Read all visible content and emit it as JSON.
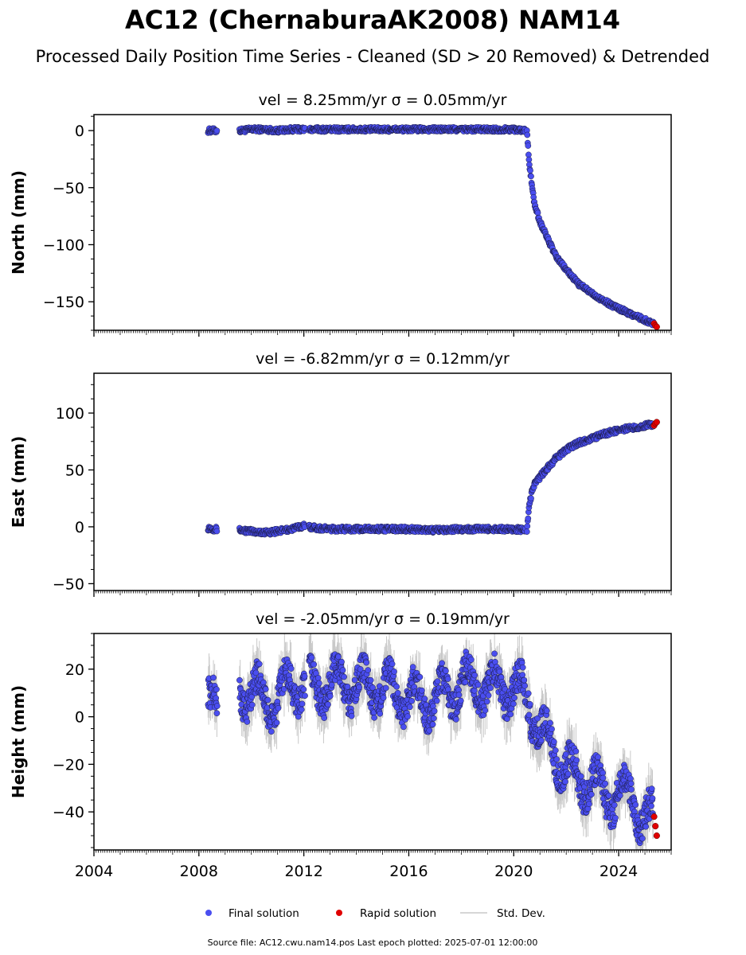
{
  "title": "AC12 (ChernaburaAK2008) NAM14",
  "subtitle": "Processed Daily Position Time Series - Cleaned (SD > 20 Removed) & Detrended",
  "footer": "Source file: AC12.cwu.nam14.pos  Last epoch plotted: 2025-07-01 12:00:00",
  "colors": {
    "final": "#4a4ef0",
    "rapid": "#e00000",
    "stddev": "#c8c8c8",
    "edge": "#1a1a40"
  },
  "legend": {
    "final": "Final solution",
    "rapid": "Rapid solution",
    "stddev": "Std. Dev."
  },
  "chart_data": [
    {
      "type": "scatter",
      "panel": "north",
      "title": "vel = 8.25mm/yr   σ = 0.05mm/yr",
      "ylabel": "North (mm)",
      "xlim": [
        2004.0,
        2026.0
      ],
      "ylim": [
        -175,
        14
      ],
      "yticks": [
        0,
        -50,
        -100,
        -150
      ],
      "ytick_labels": [
        "0",
        "−50",
        "−100",
        "−150"
      ],
      "grid": false,
      "series": [
        {
          "name": "Final solution",
          "x": [
            2008.4,
            2008.6,
            2009.6,
            2010.0,
            2010.5,
            2011.0,
            2011.5,
            2012.0,
            2012.5,
            2013.0,
            2014.0,
            2015.0,
            2016.0,
            2017.0,
            2018.0,
            2019.0,
            2020.0,
            2020.5,
            2020.6,
            2020.7,
            2020.8,
            2021.0,
            2021.3,
            2021.6,
            2022.0,
            2022.5,
            2023.0,
            2023.5,
            2024.0,
            2024.5,
            2025.0,
            2025.3
          ],
          "y": [
            0,
            0,
            0,
            1,
            1,
            0,
            1,
            1,
            1,
            1,
            1,
            1,
            1,
            1,
            1,
            1,
            1,
            0,
            -30,
            -50,
            -65,
            -80,
            -95,
            -110,
            -122,
            -135,
            -143,
            -150,
            -156,
            -161,
            -166,
            -169
          ]
        },
        {
          "name": "Rapid solution",
          "x": [
            2025.35,
            2025.4,
            2025.45
          ],
          "y": [
            -169,
            -171,
            -172
          ]
        }
      ]
    },
    {
      "type": "scatter",
      "panel": "east",
      "title": "vel = -6.82mm/yr   σ = 0.12mm/yr",
      "ylabel": "East (mm)",
      "xlim": [
        2004.0,
        2026.0
      ],
      "ylim": [
        -56,
        135
      ],
      "yticks": [
        100,
        50,
        0,
        -50
      ],
      "ytick_labels": [
        "100",
        "50",
        "0",
        "−50"
      ],
      "grid": false,
      "series": [
        {
          "name": "Final solution",
          "x": [
            2008.4,
            2008.6,
            2009.6,
            2010.0,
            2010.5,
            2011.0,
            2011.5,
            2012.0,
            2012.5,
            2013.0,
            2014.0,
            2015.0,
            2016.0,
            2017.0,
            2018.0,
            2019.0,
            2020.0,
            2020.5,
            2020.6,
            2020.7,
            2020.8,
            2021.0,
            2021.3,
            2021.6,
            2022.0,
            2022.5,
            2023.0,
            2023.5,
            2024.0,
            2024.5,
            2025.0,
            2025.3
          ],
          "y": [
            -1,
            -2,
            -3,
            -4,
            -5,
            -4,
            -2,
            1,
            -1,
            -2,
            -2,
            -2,
            -2,
            -3,
            -2,
            -2,
            -2,
            -3,
            20,
            32,
            38,
            44,
            52,
            60,
            68,
            74,
            78,
            82,
            85,
            87,
            89,
            90
          ]
        },
        {
          "name": "Rapid solution",
          "x": [
            2025.35,
            2025.4,
            2025.45
          ],
          "y": [
            89,
            91,
            92
          ]
        }
      ]
    },
    {
      "type": "scatter",
      "panel": "height",
      "title": "vel = -2.05mm/yr   σ = 0.19mm/yr",
      "ylabel": "Height (mm)",
      "xlim": [
        2004.0,
        2026.0
      ],
      "ylim": [
        -56,
        35
      ],
      "yticks": [
        20,
        0,
        -20,
        -40
      ],
      "ytick_labels": [
        "20",
        "0",
        "−20",
        "−40"
      ],
      "xticks": [
        2004,
        2008,
        2012,
        2016,
        2020,
        2024
      ],
      "xtick_labels": [
        "2004",
        "2008",
        "2012",
        "2016",
        "2020",
        "2024"
      ],
      "grid": false,
      "series": [
        {
          "name": "Final solution",
          "x": [
            2008.4,
            2008.6,
            2009.6,
            2010.0,
            2010.5,
            2011.0,
            2011.5,
            2012.0,
            2012.5,
            2013.0,
            2014.0,
            2015.0,
            2016.0,
            2017.0,
            2018.0,
            2019.0,
            2020.0,
            2020.5,
            2021.0,
            2021.5,
            2022.0,
            2022.5,
            2023.0,
            2023.5,
            2024.0,
            2024.5,
            2025.0,
            2025.3
          ],
          "y": [
            5,
            15,
            12,
            10,
            8,
            5,
            15,
            12,
            12,
            14,
            13,
            12,
            8,
            6,
            14,
            13,
            12,
            8,
            -5,
            -15,
            -20,
            -28,
            -25,
            -35,
            -30,
            -35,
            -42,
            -45
          ]
        },
        {
          "name": "Rapid solution",
          "x": [
            2025.35,
            2025.4,
            2025.45
          ],
          "y": [
            -42,
            -46,
            -50
          ]
        }
      ]
    }
  ]
}
